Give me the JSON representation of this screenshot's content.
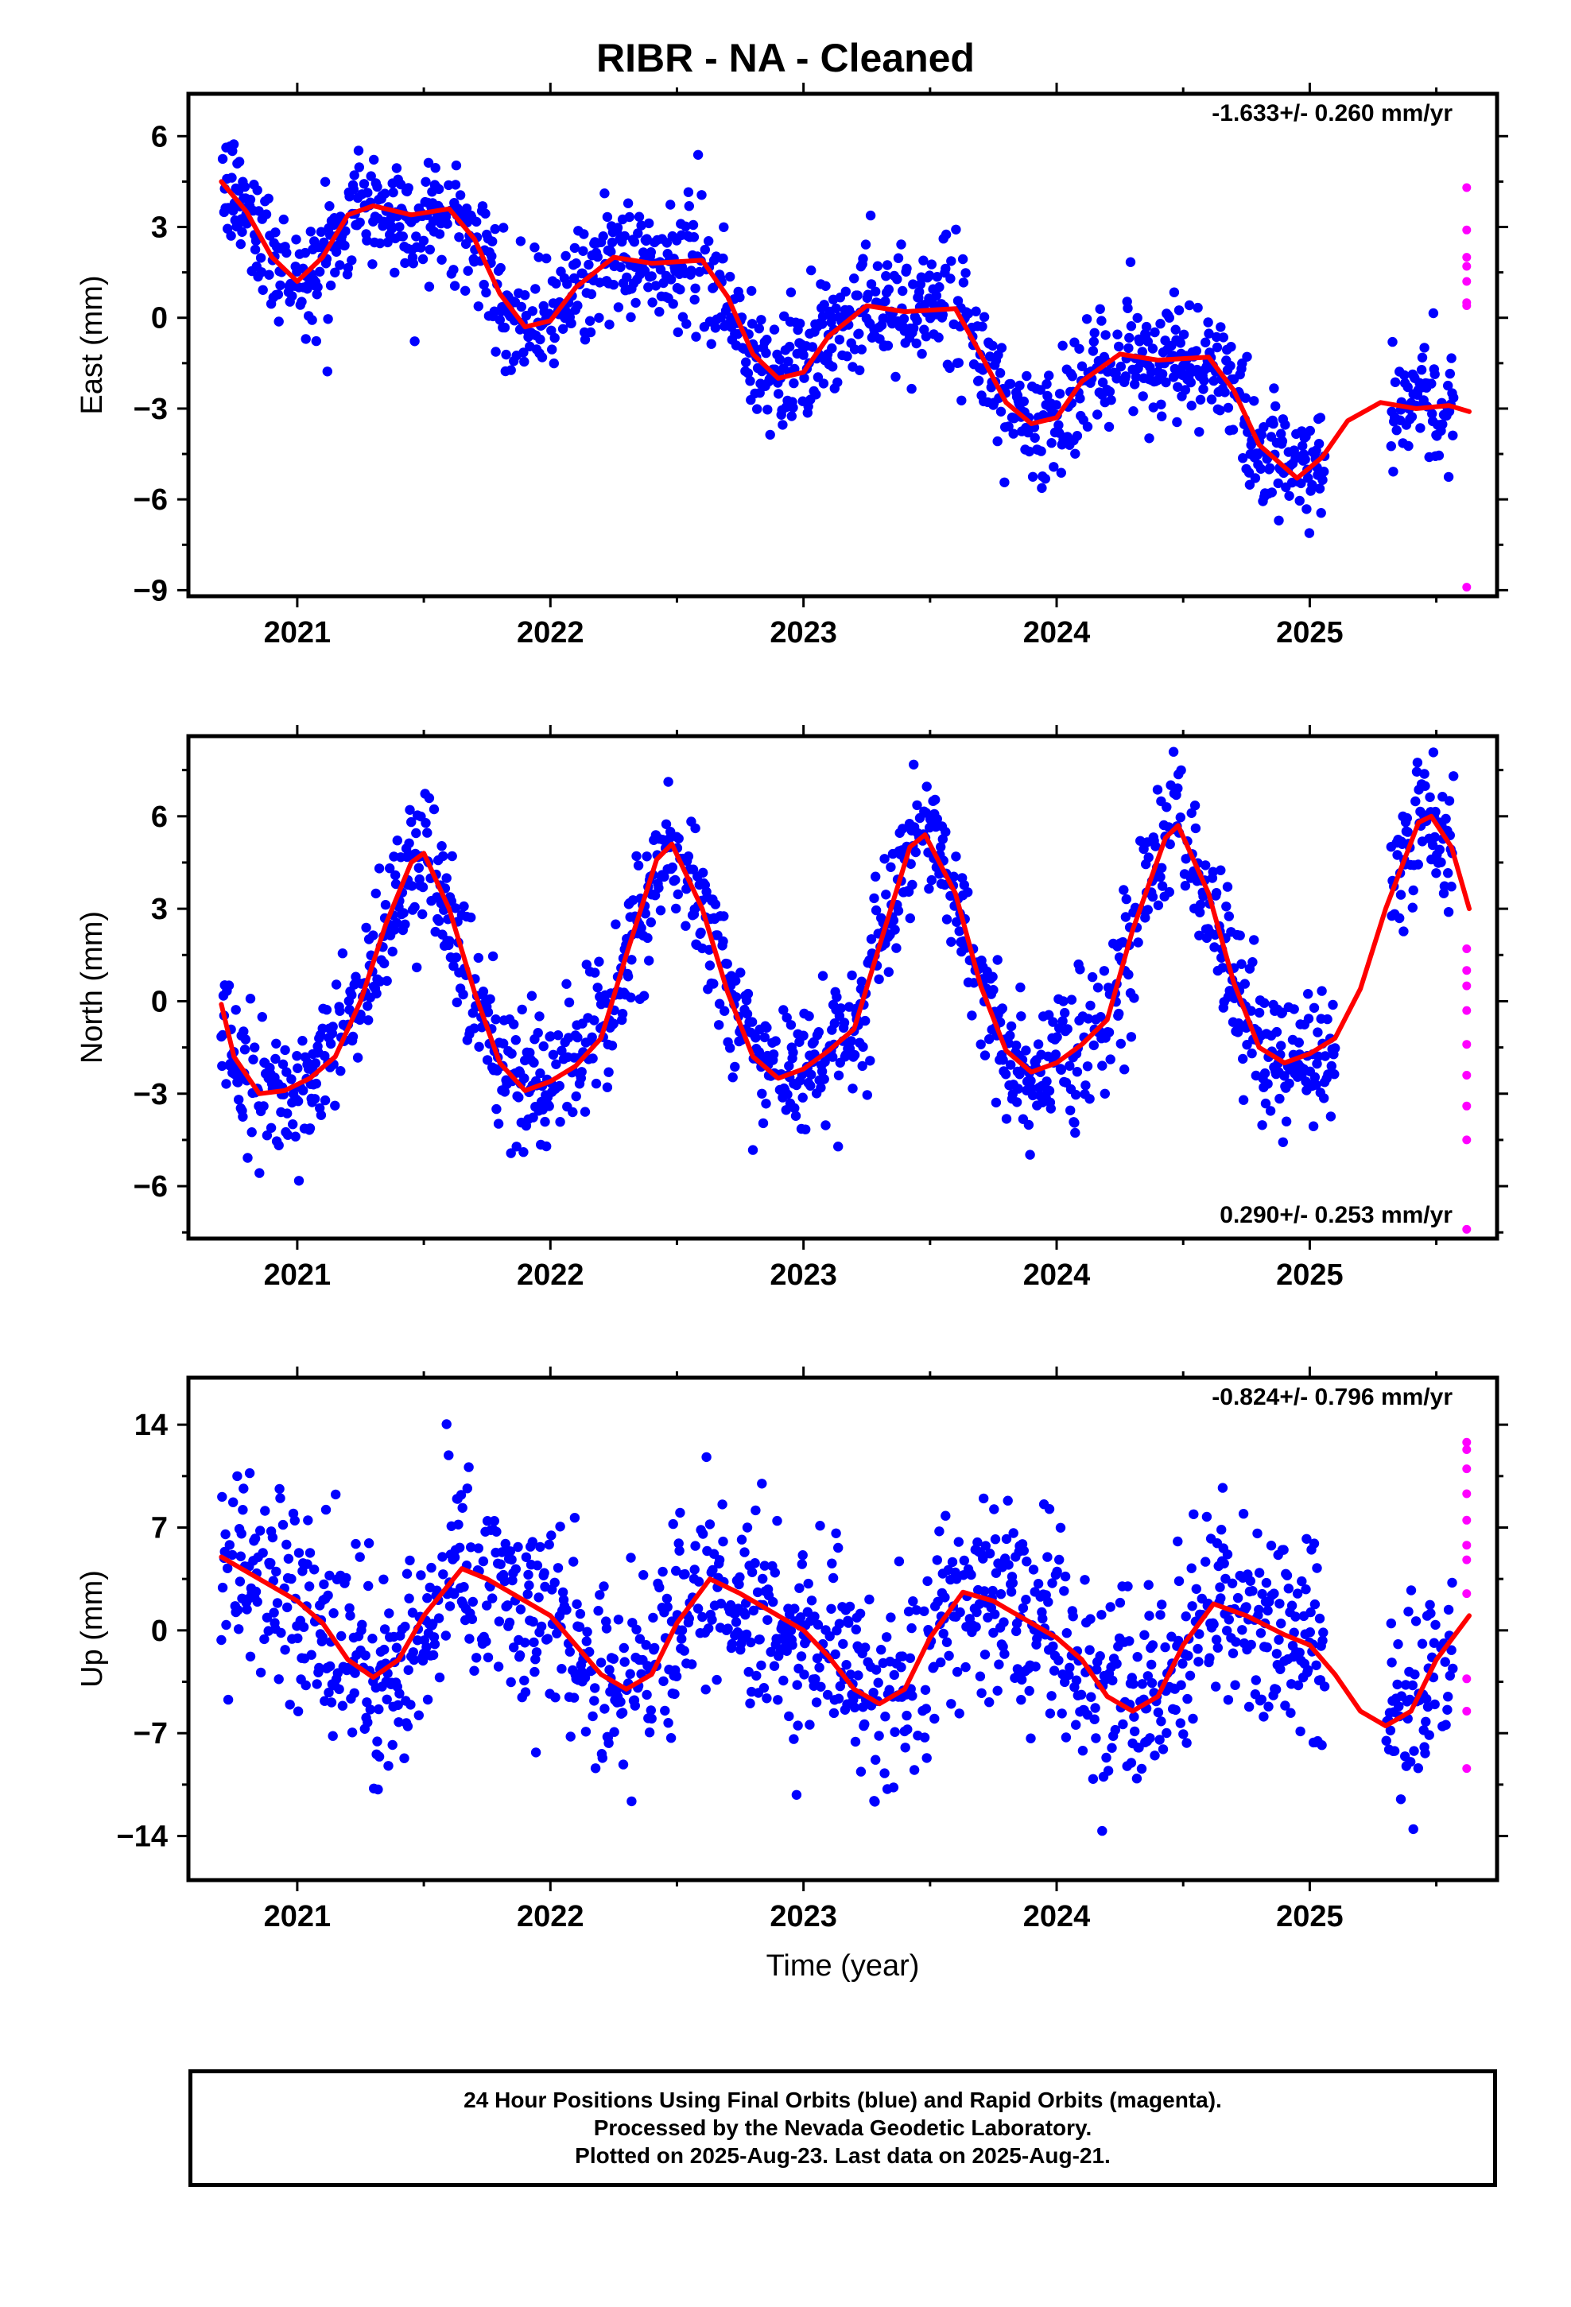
{
  "title": "RIBR  - NA - Cleaned",
  "x_axis_label": "Time (year)",
  "footer": {
    "line1": "24 Hour Positions Using Final Orbits (blue) and Rapid Orbits (magenta).",
    "line2": "Processed by the Nevada Geodetic Laboratory.",
    "line3": "Plotted on 2025-Aug-23. Last data on 2025-Aug-21."
  },
  "colors": {
    "final_orbits": "#0000ff",
    "rapid_orbits": "#ff00ff",
    "model": "#ff0000"
  },
  "chart_data": [
    {
      "type": "scatter",
      "name": "east",
      "ylabel": "East (mm)",
      "rate_label": "-1.633+/- 0.260 mm/yr",
      "rate_position": "top-right",
      "xlim": [
        2020.57,
        2025.74
      ],
      "ylim": [
        -9.2,
        7.4
      ],
      "x_ticks": [
        2021,
        2022,
        2023,
        2024,
        2025
      ],
      "y_ticks": [
        6,
        3,
        0,
        -3,
        -6,
        -9
      ],
      "final_range": [
        2020.7,
        2025.57
      ],
      "final_gaps": [
        [
          2025.06,
          2025.32
        ]
      ],
      "rate_mm_per_yr": -1.633,
      "intercept": 4.1,
      "seasonal": [
        {
          "period": 1.0,
          "amplitude": 1.5,
          "phase": 0.55
        },
        {
          "period": 0.5,
          "amplitude": 0.8,
          "phase": 1.3
        }
      ],
      "noise_mm": 1.0,
      "model_curve": [
        [
          2020.7,
          4.5
        ],
        [
          2020.8,
          3.5
        ],
        [
          2020.9,
          2.0
        ],
        [
          2021.0,
          1.2
        ],
        [
          2021.1,
          2.0
        ],
        [
          2021.2,
          3.4
        ],
        [
          2021.3,
          3.7
        ],
        [
          2021.45,
          3.4
        ],
        [
          2021.6,
          3.6
        ],
        [
          2021.7,
          2.6
        ],
        [
          2021.8,
          0.8
        ],
        [
          2021.9,
          -0.3
        ],
        [
          2022.0,
          -0.1
        ],
        [
          2022.1,
          1.0
        ],
        [
          2022.25,
          2.0
        ],
        [
          2022.4,
          1.8
        ],
        [
          2022.6,
          1.9
        ],
        [
          2022.7,
          0.7
        ],
        [
          2022.8,
          -1.2
        ],
        [
          2022.9,
          -2.0
        ],
        [
          2023.0,
          -1.8
        ],
        [
          2023.1,
          -0.6
        ],
        [
          2023.25,
          0.4
        ],
        [
          2023.4,
          0.2
        ],
        [
          2023.6,
          0.3
        ],
        [
          2023.7,
          -1.2
        ],
        [
          2023.8,
          -2.8
        ],
        [
          2023.9,
          -3.5
        ],
        [
          2024.0,
          -3.3
        ],
        [
          2024.1,
          -2.1
        ],
        [
          2024.25,
          -1.2
        ],
        [
          2024.4,
          -1.4
        ],
        [
          2024.6,
          -1.3
        ],
        [
          2024.7,
          -2.4
        ],
        [
          2024.8,
          -4.2
        ],
        [
          2024.95,
          -5.3
        ],
        [
          2025.05,
          -4.6
        ],
        [
          2025.15,
          -3.4
        ],
        [
          2025.28,
          -2.8
        ],
        [
          2025.42,
          -3.0
        ],
        [
          2025.55,
          -2.9
        ],
        [
          2025.63,
          -3.1
        ]
      ],
      "rapid_points": [
        [
          2025.62,
          4.3
        ],
        [
          2025.62,
          2.9
        ],
        [
          2025.62,
          2.0
        ],
        [
          2025.62,
          1.7
        ],
        [
          2025.62,
          1.2
        ],
        [
          2025.62,
          0.5
        ],
        [
          2025.62,
          0.4
        ],
        [
          2025.62,
          -8.9
        ]
      ]
    },
    {
      "type": "scatter",
      "name": "north",
      "ylabel": "North (mm)",
      "rate_label": "0.290+/- 0.253 mm/yr",
      "rate_position": "bottom-right",
      "xlim": [
        2020.57,
        2025.74
      ],
      "ylim": [
        -7.7,
        8.6
      ],
      "x_ticks": [
        2021,
        2022,
        2023,
        2024,
        2025
      ],
      "y_ticks": [
        6,
        3,
        0,
        -3,
        -6
      ],
      "final_range": [
        2020.7,
        2025.57
      ],
      "final_gaps": [
        [
          2025.1,
          2025.32
        ]
      ],
      "rate_mm_per_yr": 0.29,
      "intercept": 0.5,
      "seasonal": [
        {
          "period": 1.0,
          "amplitude": 4.1,
          "phase": 0.0
        },
        {
          "period": 0.5,
          "amplitude": 0.6,
          "phase": 0.4
        }
      ],
      "noise_mm": 1.1,
      "model_curve": [
        [
          2020.7,
          -0.1
        ],
        [
          2020.75,
          -1.8
        ],
        [
          2020.85,
          -3.0
        ],
        [
          2020.95,
          -2.9
        ],
        [
          2021.05,
          -2.5
        ],
        [
          2021.15,
          -1.8
        ],
        [
          2021.25,
          0.0
        ],
        [
          2021.35,
          2.5
        ],
        [
          2021.45,
          4.5
        ],
        [
          2021.5,
          4.8
        ],
        [
          2021.6,
          3.0
        ],
        [
          2021.7,
          0.3
        ],
        [
          2021.8,
          -2.0
        ],
        [
          2021.9,
          -2.9
        ],
        [
          2022.0,
          -2.6
        ],
        [
          2022.1,
          -2.1
        ],
        [
          2022.2,
          -1.2
        ],
        [
          2022.3,
          1.5
        ],
        [
          2022.42,
          4.6
        ],
        [
          2022.48,
          5.1
        ],
        [
          2022.6,
          3.0
        ],
        [
          2022.7,
          0.3
        ],
        [
          2022.8,
          -1.8
        ],
        [
          2022.9,
          -2.5
        ],
        [
          2023.0,
          -2.2
        ],
        [
          2023.1,
          -1.6
        ],
        [
          2023.2,
          -0.9
        ],
        [
          2023.3,
          1.8
        ],
        [
          2023.42,
          5.0
        ],
        [
          2023.48,
          5.4
        ],
        [
          2023.6,
          3.5
        ],
        [
          2023.7,
          0.5
        ],
        [
          2023.8,
          -1.6
        ],
        [
          2023.9,
          -2.3
        ],
        [
          2024.0,
          -2.0
        ],
        [
          2024.1,
          -1.4
        ],
        [
          2024.2,
          -0.6
        ],
        [
          2024.3,
          2.3
        ],
        [
          2024.43,
          5.3
        ],
        [
          2024.48,
          5.7
        ],
        [
          2024.6,
          3.5
        ],
        [
          2024.7,
          0.6
        ],
        [
          2024.8,
          -1.5
        ],
        [
          2024.9,
          -2.0
        ],
        [
          2025.0,
          -1.7
        ],
        [
          2025.1,
          -1.2
        ],
        [
          2025.2,
          0.4
        ],
        [
          2025.3,
          3.0
        ],
        [
          2025.43,
          5.8
        ],
        [
          2025.48,
          6.0
        ],
        [
          2025.56,
          5.0
        ],
        [
          2025.63,
          3.0
        ]
      ],
      "rapid_points": [
        [
          2025.62,
          1.7
        ],
        [
          2025.62,
          1.0
        ],
        [
          2025.62,
          0.5
        ],
        [
          2025.62,
          -0.3
        ],
        [
          2025.62,
          -1.4
        ],
        [
          2025.62,
          -2.4
        ],
        [
          2025.62,
          -3.4
        ],
        [
          2025.62,
          -4.5
        ],
        [
          2025.62,
          -7.4
        ]
      ]
    },
    {
      "type": "scatter",
      "name": "up",
      "ylabel": "Up (mm)",
      "rate_label": "-0.824+/- 0.796 mm/yr",
      "rate_position": "top-right",
      "xlim": [
        2020.57,
        2025.74
      ],
      "ylim": [
        -17,
        17.2
      ],
      "x_ticks": [
        2021,
        2022,
        2023,
        2024,
        2025
      ],
      "y_ticks": [
        14,
        7,
        0,
        -7,
        -14
      ],
      "final_range": [
        2020.7,
        2025.57
      ],
      "final_gaps": [
        [
          2025.06,
          2025.3
        ]
      ],
      "rate_mm_per_yr": -0.824,
      "intercept": 1.0,
      "seasonal": [
        {
          "period": 1.0,
          "amplitude": 3.7,
          "phase": 0.8
        },
        {
          "period": 0.5,
          "amplitude": 0.8,
          "phase": 0.2
        }
      ],
      "noise_mm": 3.5,
      "model_curve": [
        [
          2020.7,
          5.0
        ],
        [
          2020.85,
          3.5
        ],
        [
          2021.0,
          2.0
        ],
        [
          2021.1,
          0.5
        ],
        [
          2021.2,
          -2.0
        ],
        [
          2021.3,
          -3.2
        ],
        [
          2021.4,
          -2.0
        ],
        [
          2021.5,
          1.0
        ],
        [
          2021.65,
          4.2
        ],
        [
          2021.75,
          3.5
        ],
        [
          2021.9,
          2.0
        ],
        [
          2022.0,
          1.0
        ],
        [
          2022.1,
          -1.0
        ],
        [
          2022.2,
          -3.0
        ],
        [
          2022.3,
          -4.0
        ],
        [
          2022.4,
          -3.0
        ],
        [
          2022.5,
          0.5
        ],
        [
          2022.63,
          3.5
        ],
        [
          2022.75,
          2.5
        ],
        [
          2022.9,
          1.0
        ],
        [
          2023.0,
          0.0
        ],
        [
          2023.1,
          -1.8
        ],
        [
          2023.2,
          -4.0
        ],
        [
          2023.3,
          -5.0
        ],
        [
          2023.4,
          -4.0
        ],
        [
          2023.5,
          -0.5
        ],
        [
          2023.63,
          2.6
        ],
        [
          2023.75,
          2.0
        ],
        [
          2023.9,
          0.5
        ],
        [
          2024.0,
          -0.5
        ],
        [
          2024.1,
          -2.0
        ],
        [
          2024.2,
          -4.5
        ],
        [
          2024.3,
          -5.5
        ],
        [
          2024.4,
          -4.5
        ],
        [
          2024.5,
          -1.0
        ],
        [
          2024.62,
          1.8
        ],
        [
          2024.75,
          1.0
        ],
        [
          2024.9,
          -0.3
        ],
        [
          2025.0,
          -1.0
        ],
        [
          2025.1,
          -3.0
        ],
        [
          2025.2,
          -5.5
        ],
        [
          2025.3,
          -6.5
        ],
        [
          2025.4,
          -5.5
        ],
        [
          2025.5,
          -2.0
        ],
        [
          2025.63,
          1.0
        ]
      ],
      "rapid_points": [
        [
          2025.62,
          12.8
        ],
        [
          2025.62,
          12.3
        ],
        [
          2025.62,
          11.0
        ],
        [
          2025.62,
          9.3
        ],
        [
          2025.62,
          7.5
        ],
        [
          2025.62,
          5.8
        ],
        [
          2025.62,
          4.8
        ],
        [
          2025.62,
          2.5
        ],
        [
          2025.62,
          -3.3
        ],
        [
          2025.62,
          -5.5
        ],
        [
          2025.62,
          -9.4
        ]
      ]
    }
  ]
}
